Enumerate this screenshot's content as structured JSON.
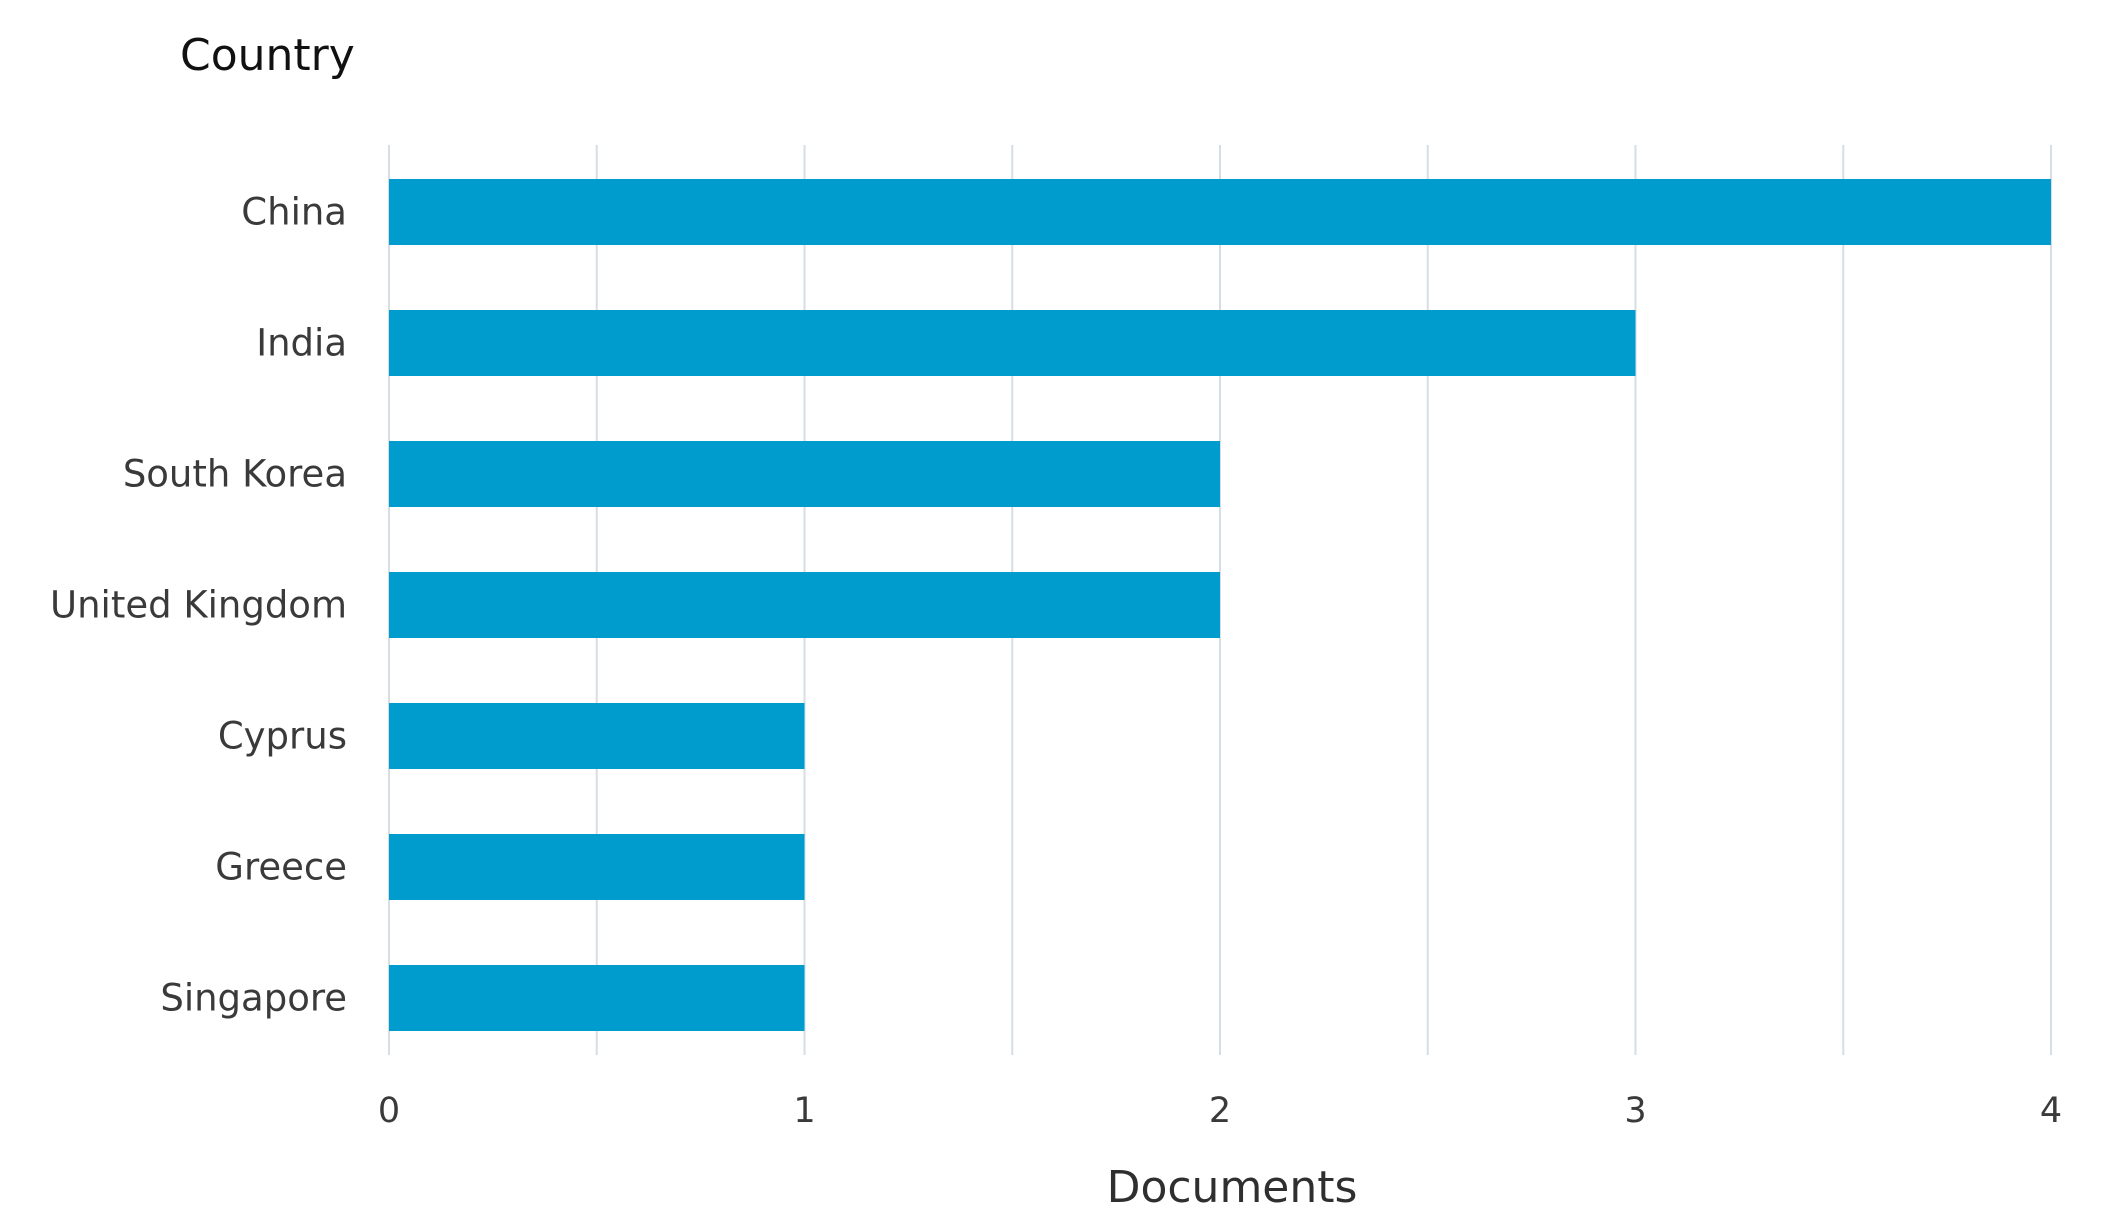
{
  "chart_data": {
    "type": "bar",
    "orientation": "horizontal",
    "categories": [
      "China",
      "India",
      "South Korea",
      "United Kingdom",
      "Cyprus",
      "Greece",
      "Singapore"
    ],
    "series": [
      {
        "values": [
          4,
          3,
          2,
          2,
          1,
          1,
          1
        ]
      }
    ],
    "category_axis_title": "Country",
    "value_axis_title": "Documents",
    "xlim": [
      0,
      4
    ],
    "x_ticks": [
      0,
      1,
      2,
      3,
      4
    ],
    "x_tick_labels": [
      "0",
      "1",
      "2",
      "3",
      "4"
    ],
    "grid": "vertical, every 0.5",
    "legend": "none",
    "colors": {
      "bar": "#009ccd",
      "grid": "#d6dde3"
    }
  }
}
